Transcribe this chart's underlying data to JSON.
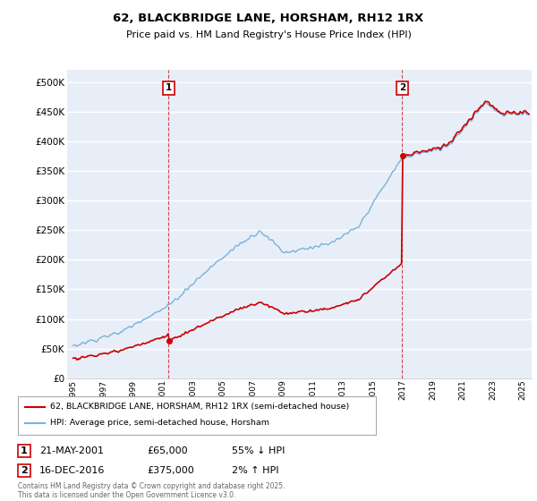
{
  "title_line1": "62, BLACKBRIDGE LANE, HORSHAM, RH12 1RX",
  "title_line2": "Price paid vs. HM Land Registry's House Price Index (HPI)",
  "ylim": [
    0,
    520000
  ],
  "yticks": [
    0,
    50000,
    100000,
    150000,
    200000,
    250000,
    300000,
    350000,
    400000,
    450000,
    500000
  ],
  "ytick_labels": [
    "£0",
    "£50K",
    "£100K",
    "£150K",
    "£200K",
    "£250K",
    "£300K",
    "£350K",
    "£400K",
    "£450K",
    "£500K"
  ],
  "hpi_color": "#7ab3d8",
  "property_color": "#cc0000",
  "background_color": "#e8eef8",
  "grid_color": "#ffffff",
  "sale1_year": 2001.37,
  "sale1_price": 65000,
  "sale2_year": 2016.96,
  "sale2_price": 375000,
  "legend_label1": "62, BLACKBRIDGE LANE, HORSHAM, RH12 1RX (semi-detached house)",
  "legend_label2": "HPI: Average price, semi-detached house, Horsham",
  "note1_num": "1",
  "note1_date": "21-MAY-2001",
  "note1_price": "£65,000",
  "note1_hpi": "55% ↓ HPI",
  "note2_num": "2",
  "note2_date": "16-DEC-2016",
  "note2_price": "£375,000",
  "note2_hpi": "2% ↑ HPI",
  "footer": "Contains HM Land Registry data © Crown copyright and database right 2025.\nThis data is licensed under the Open Government Licence v3.0."
}
